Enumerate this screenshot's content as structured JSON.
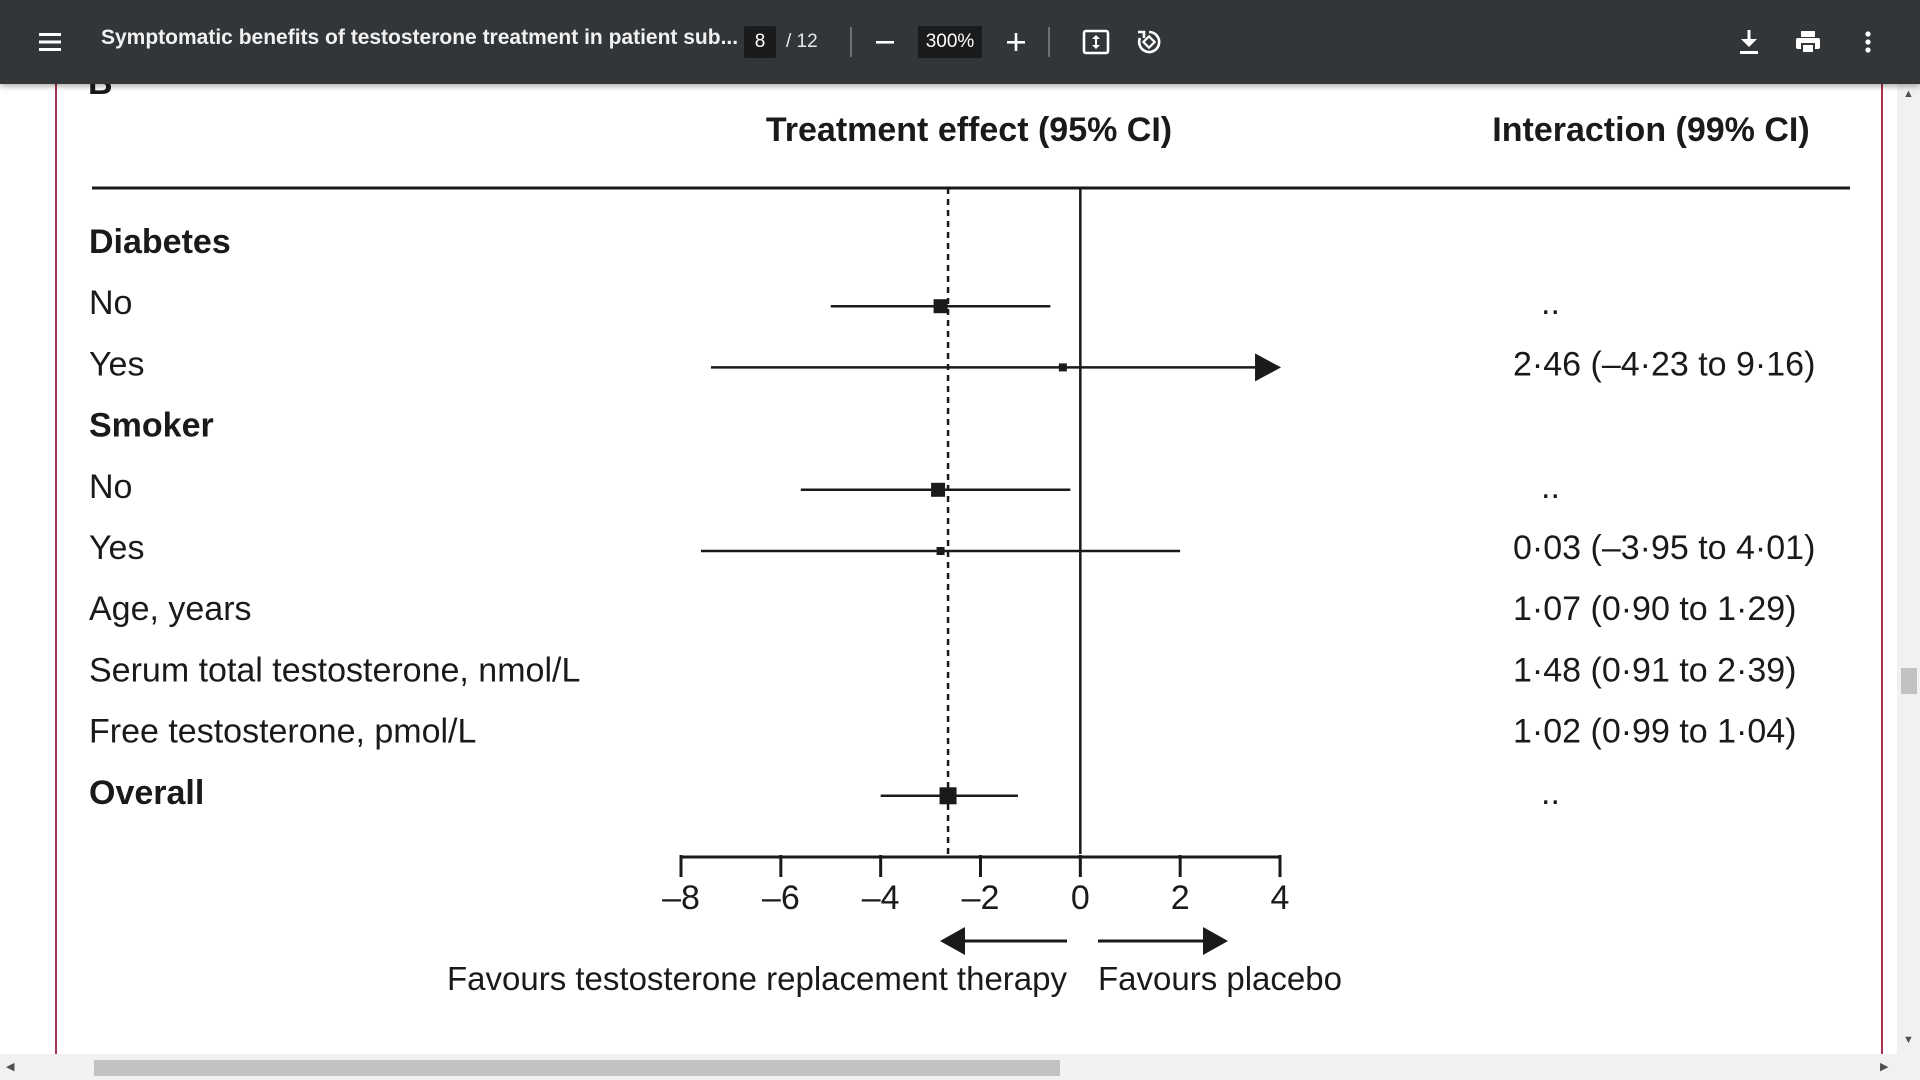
{
  "toolbar": {
    "title": "Symptomatic benefits of testosterone treatment in patient sub...",
    "current_page": "8",
    "page_total": "/ 12",
    "zoom": "300%",
    "icons": [
      "menu-icon",
      "zoom-out-icon",
      "zoom-in-icon",
      "fit-page-icon",
      "rotate-icon",
      "download-icon",
      "print-icon",
      "more-icon"
    ]
  },
  "document": {
    "panel_letter": "B",
    "header_effect": "Treatment effect (95% CI)",
    "header_interaction": "Interaction (99% CI)",
    "favours_left": "Favours testosterone replacement therapy",
    "favours_right": "Favours placebo"
  },
  "chart_data": {
    "type": "forest",
    "xlim": [
      -8,
      4
    ],
    "xticks": [
      -8,
      -6,
      -4,
      -2,
      0,
      2,
      4
    ],
    "xtick_labels": [
      "–8",
      "–6",
      "–4",
      "–2",
      "0",
      "2",
      "4"
    ],
    "reference_line": 0,
    "overall_dashed_line": -2.65,
    "rows": [
      {
        "label": "Diabetes",
        "bold": true,
        "type": "header",
        "interaction": ""
      },
      {
        "label": "No",
        "bold": false,
        "type": "estimate",
        "est": -2.8,
        "lo": -5.0,
        "hi": -0.6,
        "size": "medium",
        "interaction": ".."
      },
      {
        "label": "Yes",
        "bold": false,
        "type": "estimate",
        "est": -0.35,
        "lo": -7.4,
        "hi": 3.5,
        "size": "small",
        "truncated_right": true,
        "interaction": "2·46 (–4·23 to 9·16)"
      },
      {
        "label": "Smoker",
        "bold": true,
        "type": "header",
        "interaction": ""
      },
      {
        "label": "No",
        "bold": false,
        "type": "estimate",
        "est": -2.85,
        "lo": -5.6,
        "hi": -0.2,
        "size": "medium",
        "interaction": ".."
      },
      {
        "label": "Yes",
        "bold": false,
        "type": "estimate",
        "est": -2.8,
        "lo": -7.6,
        "hi": 2.0,
        "size": "small",
        "interaction": "0·03 (–3·95 to 4·01)"
      },
      {
        "label": "Age, years",
        "bold": false,
        "type": "interaction-only",
        "interaction": "1·07 (0·90 to 1·29)"
      },
      {
        "label": "Serum total testosterone, nmol/L",
        "bold": false,
        "type": "interaction-only",
        "interaction": "1·48 (0·91 to 2·39)"
      },
      {
        "label": "Free testosterone, pmol/L",
        "bold": false,
        "type": "interaction-only",
        "interaction": "1·02 (0·99 to 1·04)"
      },
      {
        "label": "Overall",
        "bold": true,
        "type": "estimate",
        "est": -2.65,
        "lo": -4.0,
        "hi": -1.25,
        "size": "large",
        "interaction": ".."
      }
    ]
  }
}
